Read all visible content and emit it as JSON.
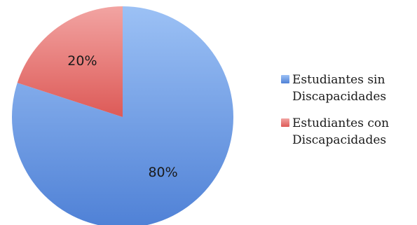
{
  "chart_data": {
    "type": "pie",
    "title": "",
    "categories": [
      "Estudiantes sin\nDiscapacidades",
      "Estudiantes con\nDiscapacidades"
    ],
    "values": [
      80,
      20
    ],
    "data_labels": [
      "80%",
      "20%"
    ],
    "colors": [
      "#4f81d6",
      "#dd5a57"
    ],
    "color_highlights": [
      "#9cc1f5",
      "#f2a4a2"
    ],
    "legend_position": "right",
    "start_angle_degrees": 0,
    "direction": "clockwise"
  }
}
